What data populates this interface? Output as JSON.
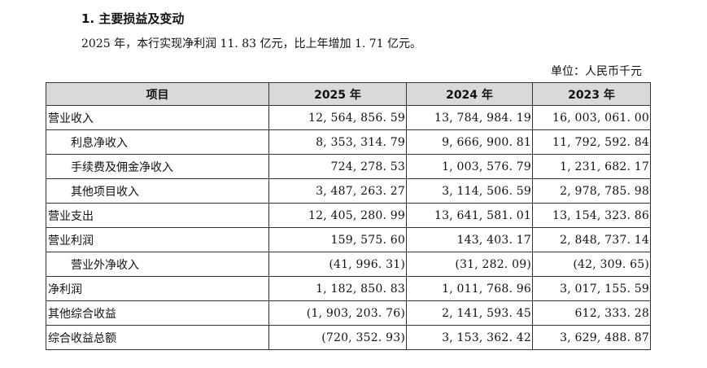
{
  "heading": "1. 主要损益及变动",
  "summary": "2025 年，本行实现净利润 11. 83 亿元，比上年增加 1. 71 亿元。",
  "unit": "单位：人民币千元",
  "table": {
    "headers": [
      "项目",
      "2025 年",
      "2024 年",
      "2023 年"
    ],
    "rows": [
      {
        "item": "营业收入",
        "indent": false,
        "values": [
          "12, 564, 856. 59",
          "13, 784, 984. 19",
          "16, 003, 061. 00"
        ]
      },
      {
        "item": "利息净收入",
        "indent": true,
        "values": [
          "8, 353, 314. 79",
          "9, 666, 900. 81",
          "11, 792, 592. 84"
        ]
      },
      {
        "item": "手续费及佣金净收入",
        "indent": true,
        "values": [
          "724, 278. 53",
          "1, 003, 576. 79",
          "1, 231, 682. 17"
        ]
      },
      {
        "item": "其他项目收入",
        "indent": true,
        "values": [
          "3, 487, 263. 27",
          "3, 114, 506. 59",
          "2, 978, 785. 98"
        ]
      },
      {
        "item": "营业支出",
        "indent": false,
        "values": [
          "12, 405, 280. 99",
          "13, 641, 581. 01",
          "13, 154, 323. 86"
        ]
      },
      {
        "item": "营业利润",
        "indent": false,
        "values": [
          "159, 575. 60",
          "143, 403. 17",
          "2, 848, 737. 14"
        ]
      },
      {
        "item": "营业外净收入",
        "indent": true,
        "values": [
          "(41, 996. 31)",
          "(31, 282. 09)",
          "(42, 309. 65)"
        ]
      },
      {
        "item": "净利润",
        "indent": false,
        "values": [
          "1, 182, 850. 83",
          "1, 011, 768. 96",
          "3, 017, 155. 59"
        ]
      },
      {
        "item": "其他综合收益",
        "indent": false,
        "values": [
          "(1, 903, 203. 76)",
          "2, 141, 593. 45",
          "612, 333. 28"
        ]
      },
      {
        "item": "综合收益总额",
        "indent": false,
        "values": [
          "(720, 352. 93)",
          "3, 153, 362. 42",
          "3, 629, 488. 87"
        ]
      }
    ]
  }
}
